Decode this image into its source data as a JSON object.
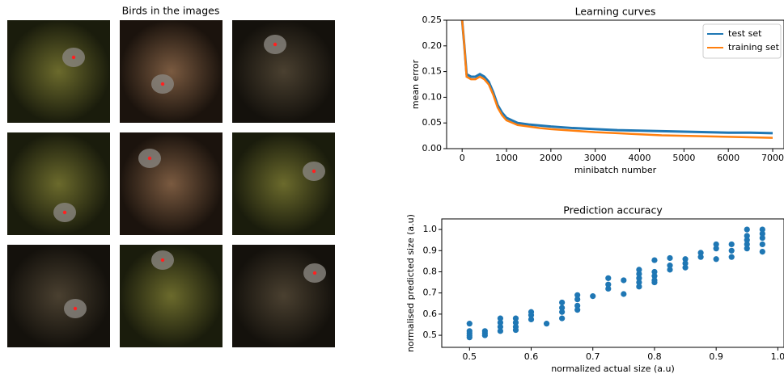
{
  "images_panel": {
    "title": "Birds in the images"
  },
  "chart_data": [
    {
      "type": "line",
      "title": "Learning curves",
      "xlabel": "minibatch number",
      "ylabel": "mean error",
      "x": [
        0,
        50,
        100,
        200,
        300,
        400,
        500,
        600,
        700,
        800,
        900,
        1000,
        1250,
        1500,
        1750,
        2000,
        2500,
        3000,
        3500,
        4000,
        4500,
        5000,
        5500,
        6000,
        6500,
        7000
      ],
      "series": [
        {
          "name": "test set",
          "color": "#1f77b4",
          "values": [
            0.25,
            0.2,
            0.145,
            0.14,
            0.14,
            0.145,
            0.14,
            0.13,
            0.11,
            0.085,
            0.07,
            0.06,
            0.05,
            0.047,
            0.045,
            0.043,
            0.04,
            0.038,
            0.036,
            0.035,
            0.034,
            0.033,
            0.032,
            0.031,
            0.031,
            0.03
          ]
        },
        {
          "name": "training set",
          "color": "#ff7f0e",
          "values": [
            0.25,
            0.2,
            0.14,
            0.135,
            0.135,
            0.14,
            0.135,
            0.125,
            0.105,
            0.08,
            0.065,
            0.055,
            0.046,
            0.043,
            0.04,
            0.038,
            0.035,
            0.032,
            0.03,
            0.028,
            0.026,
            0.025,
            0.024,
            0.023,
            0.022,
            0.021
          ]
        }
      ],
      "xlim": [
        -350,
        7255
      ],
      "xticks": [
        0,
        1000,
        2000,
        3000,
        4000,
        5000,
        6000,
        7000
      ],
      "ylim": [
        0,
        0.25
      ],
      "yticks": [
        {
          "value": 0,
          "label": "0.00"
        },
        0.05,
        {
          "value": 0.1,
          "label": "0.10"
        },
        0.15,
        {
          "value": 0.2,
          "label": "0.20"
        },
        0.25
      ],
      "legend": "upper right"
    },
    {
      "type": "scatter",
      "title": "Prediction accuracy",
      "xlabel": "normalized actual size (a.u)",
      "ylabel": "normalised predicted size (a.u)",
      "color": "#1f77b4",
      "x": [
        0.5,
        0.5,
        0.5,
        0.5,
        0.5,
        0.525,
        0.525,
        0.525,
        0.55,
        0.55,
        0.55,
        0.55,
        0.575,
        0.575,
        0.575,
        0.575,
        0.6,
        0.6,
        0.6,
        0.625,
        0.65,
        0.65,
        0.65,
        0.65,
        0.675,
        0.675,
        0.675,
        0.675,
        0.7,
        0.725,
        0.725,
        0.725,
        0.75,
        0.75,
        0.775,
        0.775,
        0.775,
        0.775,
        0.775,
        0.8,
        0.8,
        0.8,
        0.8,
        0.8,
        0.825,
        0.825,
        0.825,
        0.85,
        0.85,
        0.85,
        0.875,
        0.875,
        0.9,
        0.9,
        0.9,
        0.925,
        0.925,
        0.925,
        0.95,
        0.95,
        0.95,
        0.95,
        0.95,
        0.975,
        0.975,
        0.975,
        0.975,
        0.975
      ],
      "y": [
        0.555,
        0.52,
        0.51,
        0.5,
        0.49,
        0.52,
        0.51,
        0.5,
        0.58,
        0.56,
        0.54,
        0.52,
        0.58,
        0.56,
        0.54,
        0.525,
        0.61,
        0.595,
        0.575,
        0.555,
        0.655,
        0.63,
        0.61,
        0.58,
        0.69,
        0.67,
        0.64,
        0.62,
        0.685,
        0.77,
        0.74,
        0.72,
        0.76,
        0.695,
        0.81,
        0.79,
        0.77,
        0.75,
        0.73,
        0.855,
        0.8,
        0.78,
        0.76,
        0.75,
        0.865,
        0.83,
        0.81,
        0.86,
        0.84,
        0.82,
        0.89,
        0.87,
        0.93,
        0.91,
        0.86,
        0.93,
        0.9,
        0.87,
        1.0,
        0.97,
        0.95,
        0.93,
        0.91,
        1.0,
        0.98,
        0.96,
        0.93,
        0.895
      ],
      "xlim": [
        0.455,
        1.01
      ],
      "xticks": [
        0.5,
        0.6,
        0.7,
        0.8,
        0.9,
        {
          "value": 1.0,
          "label": "1.0"
        }
      ],
      "ylim": [
        0.443,
        1.05
      ],
      "yticks": [
        0.5,
        0.6,
        0.7,
        0.8,
        0.9,
        {
          "value": 1.0,
          "label": "1.0"
        }
      ]
    }
  ]
}
